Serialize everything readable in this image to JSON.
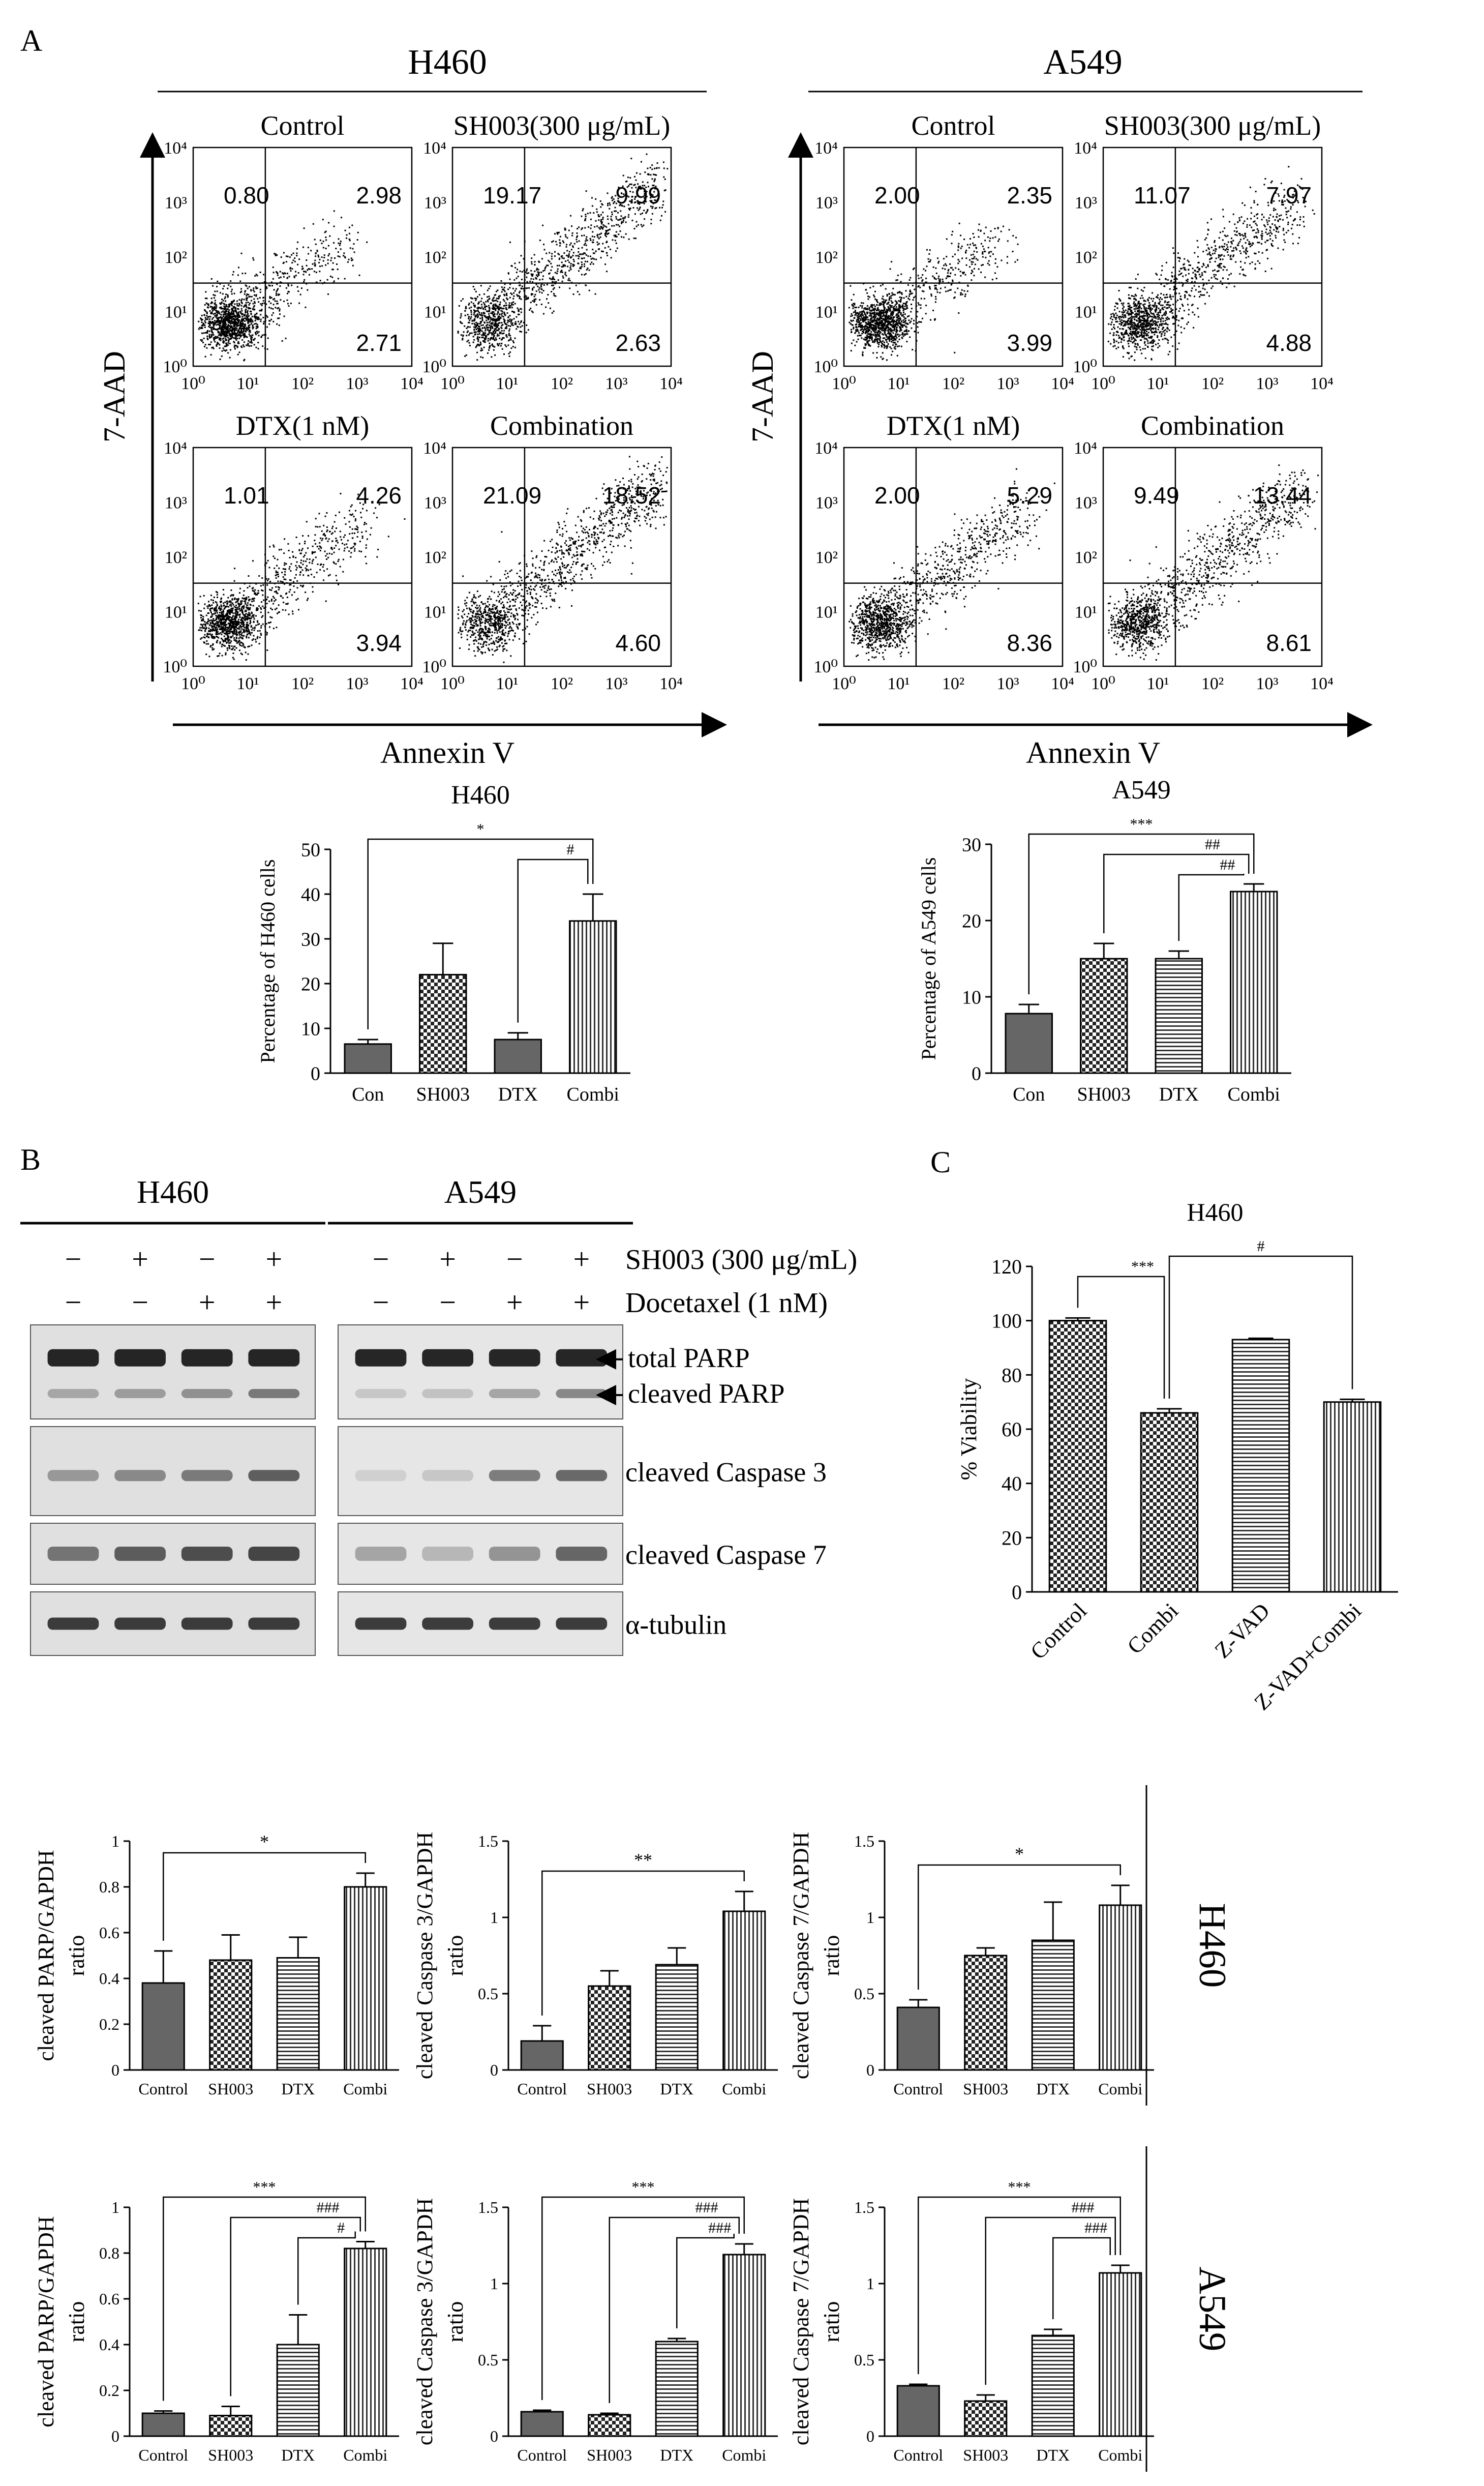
{
  "panelA": {
    "label": "A",
    "annexin_label": "Annexin V",
    "yaxis_label": "7-AAD",
    "decade_ticks": [
      "10⁰",
      "10¹",
      "10²",
      "10³",
      "10⁴"
    ],
    "groups": [
      {
        "cell_line": "H460",
        "plots": [
          {
            "title": "Control",
            "ul": "0.80",
            "ur": "2.98",
            "lr": "2.71",
            "shift": 0
          },
          {
            "title": "SH003(300 μg/mL)",
            "ul": "19.17",
            "ur": "9.99",
            "lr": "2.63",
            "shift": 1
          },
          {
            "title": "DTX(1 nM)",
            "ul": "1.01",
            "ur": "4.26",
            "lr": "3.94",
            "shift": 0.3
          },
          {
            "title": "Combination",
            "ul": "21.09",
            "ur": "18.52",
            "lr": "4.60",
            "shift": 1
          }
        ]
      },
      {
        "cell_line": "A549",
        "plots": [
          {
            "title": "Control",
            "ul": "2.00",
            "ur": "2.35",
            "lr": "3.99",
            "shift": 0
          },
          {
            "title": "SH003(300 μg/mL)",
            "ul": "11.07",
            "ur": "7.97",
            "lr": "4.88",
            "shift": 0.6
          },
          {
            "title": "DTX(1 nM)",
            "ul": "2.00",
            "ur": "5.29",
            "lr": "8.36",
            "shift": 0.5
          },
          {
            "title": "Combination",
            "ul": "9.49",
            "ur": "13.44",
            "lr": "8.61",
            "shift": 0.8
          }
        ]
      }
    ]
  },
  "chart_data": [
    {
      "id": "a_h460",
      "type": "bar",
      "title": "H460",
      "ylabel": "Percentage of H460 cells",
      "xlabel": "",
      "categories": [
        "Con",
        "SH003",
        "DTX",
        "Combi"
      ],
      "values": [
        6.5,
        22,
        7.5,
        34
      ],
      "errors": [
        1,
        7,
        1.5,
        6
      ],
      "ylim": [
        0,
        50
      ],
      "yticks": [
        0,
        10,
        20,
        30,
        40,
        50
      ],
      "patterns": [
        "solid",
        "check",
        "solid",
        "vlines"
      ],
      "significance": [
        {
          "from": 0,
          "to": 3,
          "label": "*"
        },
        {
          "from": 2,
          "to": 3,
          "label": "#"
        }
      ]
    },
    {
      "id": "a_a549",
      "type": "bar",
      "title": "A549",
      "ylabel": "Percentage of A549 cells",
      "xlabel": "",
      "categories": [
        "Con",
        "SH003",
        "DTX",
        "Combi"
      ],
      "values": [
        7.8,
        15,
        15,
        23.8
      ],
      "errors": [
        1.2,
        2,
        1,
        1
      ],
      "ylim": [
        0,
        30
      ],
      "yticks": [
        0,
        10,
        20,
        30
      ],
      "patterns": [
        "solid",
        "check",
        "hlines",
        "vlines"
      ],
      "significance": [
        {
          "from": 0,
          "to": 3,
          "label": "***"
        },
        {
          "from": 1,
          "to": 3,
          "label": "##"
        },
        {
          "from": 2,
          "to": 3,
          "label": "##"
        }
      ]
    },
    {
      "id": "c_h460",
      "type": "bar",
      "title": "H460",
      "ylabel": "% Viability",
      "xlabel": "",
      "categories": [
        "Control",
        "Combi",
        "Z-VAD",
        "Z-VAD+Combi"
      ],
      "values": [
        100,
        66,
        93,
        70
      ],
      "errors": [
        1,
        1.5,
        0.5,
        1
      ],
      "ylim": [
        0,
        120
      ],
      "yticks": [
        0,
        20,
        40,
        60,
        80,
        100,
        120
      ],
      "patterns": [
        "check",
        "check",
        "hlines",
        "vlines"
      ],
      "significance": [
        {
          "from": 0,
          "to": 1,
          "label": "***"
        },
        {
          "from": 1,
          "to": 3,
          "label": "#"
        }
      ]
    },
    {
      "id": "d_h460_parp",
      "type": "bar",
      "title": "",
      "ylabel": "cleaved PARP/GAPDH",
      "ylabel2": "ratio",
      "xlabel": "",
      "categories": [
        "Control",
        "SH003",
        "DTX",
        "Combi"
      ],
      "values": [
        0.38,
        0.48,
        0.49,
        0.8
      ],
      "errors": [
        0.14,
        0.11,
        0.09,
        0.06
      ],
      "ylim": [
        0,
        1.0
      ],
      "yticks": [
        0,
        0.2,
        0.4,
        0.6,
        0.8,
        1.0
      ],
      "patterns": [
        "solid",
        "check",
        "hlines",
        "vlines"
      ],
      "significance": [
        {
          "from": 0,
          "to": 3,
          "label": "*"
        }
      ]
    },
    {
      "id": "d_h460_c3",
      "type": "bar",
      "title": "",
      "ylabel": "cleaved Caspase 3/GAPDH",
      "ylabel2": "ratio",
      "xlabel": "",
      "categories": [
        "Control",
        "SH003",
        "DTX",
        "Combi"
      ],
      "values": [
        0.19,
        0.55,
        0.69,
        1.04
      ],
      "errors": [
        0.1,
        0.1,
        0.11,
        0.13
      ],
      "ylim": [
        0,
        1.5
      ],
      "yticks": [
        0,
        0.5,
        1.0,
        1.5
      ],
      "patterns": [
        "solid",
        "check",
        "hlines",
        "vlines"
      ],
      "significance": [
        {
          "from": 0,
          "to": 3,
          "label": "**"
        }
      ]
    },
    {
      "id": "d_h460_c7",
      "type": "bar",
      "title": "",
      "ylabel": "cleaved Caspase 7/GAPDH",
      "ylabel2": "ratio",
      "xlabel": "",
      "categories": [
        "Control",
        "SH003",
        "DTX",
        "Combi"
      ],
      "values": [
        0.41,
        0.75,
        0.85,
        1.08
      ],
      "errors": [
        0.05,
        0.05,
        0.25,
        0.13
      ],
      "ylim": [
        0,
        1.5
      ],
      "yticks": [
        0,
        0.5,
        1.0,
        1.5
      ],
      "patterns": [
        "solid",
        "check",
        "hlines",
        "vlines"
      ],
      "significance": [
        {
          "from": 0,
          "to": 3,
          "label": "*"
        }
      ]
    },
    {
      "id": "d_a549_parp",
      "type": "bar",
      "title": "",
      "ylabel": "cleaved PARP/GAPDH",
      "ylabel2": "ratio",
      "xlabel": "",
      "categories": [
        "Control",
        "SH003",
        "DTX",
        "Combi"
      ],
      "values": [
        0.1,
        0.09,
        0.4,
        0.82
      ],
      "errors": [
        0.01,
        0.04,
        0.13,
        0.03
      ],
      "ylim": [
        0,
        1.0
      ],
      "yticks": [
        0,
        0.2,
        0.4,
        0.6,
        0.8,
        1.0
      ],
      "patterns": [
        "solid",
        "check",
        "hlines",
        "vlines"
      ],
      "significance": [
        {
          "from": 0,
          "to": 3,
          "label": "***"
        },
        {
          "from": 1,
          "to": 3,
          "label": "###"
        },
        {
          "from": 2,
          "to": 3,
          "label": "#"
        }
      ]
    },
    {
      "id": "d_a549_c3",
      "type": "bar",
      "title": "",
      "ylabel": "cleaved Caspase 3/GAPDH",
      "ylabel2": "ratio",
      "xlabel": "",
      "categories": [
        "Control",
        "SH003",
        "DTX",
        "Combi"
      ],
      "values": [
        0.16,
        0.14,
        0.62,
        1.19
      ],
      "errors": [
        0.01,
        0.01,
        0.02,
        0.07
      ],
      "ylim": [
        0,
        1.5
      ],
      "yticks": [
        0,
        0.5,
        1.0,
        1.5
      ],
      "patterns": [
        "solid",
        "check",
        "hlines",
        "vlines"
      ],
      "significance": [
        {
          "from": 0,
          "to": 3,
          "label": "***"
        },
        {
          "from": 1,
          "to": 3,
          "label": "###"
        },
        {
          "from": 2,
          "to": 3,
          "label": "###"
        }
      ]
    },
    {
      "id": "d_a549_c7",
      "type": "bar",
      "title": "",
      "ylabel": "cleaved Caspase 7/GAPDH",
      "ylabel2": "ratio",
      "xlabel": "",
      "categories": [
        "Control",
        "SH003",
        "DTX",
        "Combi"
      ],
      "values": [
        0.33,
        0.23,
        0.66,
        1.07
      ],
      "errors": [
        0.01,
        0.04,
        0.04,
        0.05
      ],
      "ylim": [
        0,
        1.5
      ],
      "yticks": [
        0,
        0.5,
        1.0,
        1.5
      ],
      "patterns": [
        "solid",
        "check",
        "hlines",
        "vlines"
      ],
      "significance": [
        {
          "from": 0,
          "to": 3,
          "label": "***"
        },
        {
          "from": 1,
          "to": 3,
          "label": "###"
        },
        {
          "from": 2,
          "to": 3,
          "label": "###"
        }
      ]
    }
  ],
  "panelB": {
    "label": "B",
    "cell_lines": [
      "H460",
      "A549"
    ],
    "treatments": [
      {
        "label": "SH003 (300 μg/mL)",
        "signs": [
          "−",
          "+",
          "−",
          "+"
        ]
      },
      {
        "label": "Docetaxel (1 nM)",
        "signs": [
          "−",
          "−",
          "+",
          "+"
        ]
      }
    ],
    "blots": [
      {
        "labels": [
          "total PARP",
          "cleaved PARP"
        ],
        "arrows": true
      },
      {
        "labels": [
          "cleaved Caspase 3"
        ],
        "arrows": false
      },
      {
        "labels": [
          "cleaved Caspase 7"
        ],
        "arrows": false
      },
      {
        "labels": [
          "α-tubulin"
        ],
        "arrows": false
      }
    ]
  },
  "panelC": {
    "label": "C"
  },
  "panelD": {
    "row_labels": [
      "H460",
      "A549"
    ]
  }
}
